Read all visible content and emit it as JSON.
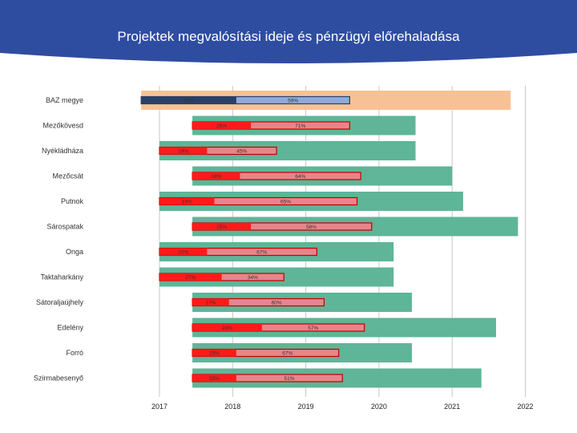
{
  "header": {
    "title": "Projektek megvalósítási ideje és pénzügyi előrehaladása"
  },
  "colors": {
    "banner": "#2f4da0",
    "timeline_highlight": "#f8c195",
    "timeline": "#5fb597",
    "spent_highlight": "#2b3f66",
    "remaining_highlight": "#8eaadb",
    "spent": "#ff1a1a",
    "remaining": "#e8858a"
  },
  "chart_data": {
    "type": "gantt",
    "title": "Projektek megvalósítási ideje és pénzügyi előrehaladása",
    "x_ticks": [
      "2017",
      "2018",
      "2019",
      "2020",
      "2021",
      "2022"
    ],
    "x_range": [
      2017,
      2022
    ],
    "rows": [
      {
        "name": "BAZ megye",
        "start": 2016.75,
        "end": 2021.8,
        "spent_pct": "27%",
        "committed_pct": "59%",
        "bar_start": 2016.75,
        "bar_split": 2018.05,
        "bar_end": 2019.6,
        "highlight": true
      },
      {
        "name": "Mezőkövesd",
        "start": 2017.45,
        "end": 2020.5,
        "spent_pct": "26%",
        "committed_pct": "71%",
        "bar_start": 2017.45,
        "bar_split": 2018.25,
        "bar_end": 2019.6
      },
      {
        "name": "Nyékládháza",
        "start": 2017.0,
        "end": 2020.5,
        "spent_pct": "19%",
        "committed_pct": "45%",
        "bar_start": 2017.0,
        "bar_split": 2017.65,
        "bar_end": 2018.6
      },
      {
        "name": "Mezőcsát",
        "start": 2017.45,
        "end": 2021.0,
        "spent_pct": "18%",
        "committed_pct": "64%",
        "bar_start": 2017.45,
        "bar_split": 2018.1,
        "bar_end": 2019.75
      },
      {
        "name": "Putnok",
        "start": 2017.0,
        "end": 2021.15,
        "spent_pct": "18%",
        "committed_pct": "65%",
        "bar_start": 2017.0,
        "bar_split": 2017.75,
        "bar_end": 2019.7
      },
      {
        "name": "Sárospatak",
        "start": 2017.45,
        "end": 2021.9,
        "spent_pct": "25%",
        "committed_pct": "58%",
        "bar_start": 2017.45,
        "bar_split": 2018.25,
        "bar_end": 2019.9
      },
      {
        "name": "Onga",
        "start": 2017.0,
        "end": 2020.2,
        "spent_pct": "20%",
        "committed_pct": "67%",
        "bar_start": 2017.0,
        "bar_split": 2017.65,
        "bar_end": 2019.15
      },
      {
        "name": "Taktaharkány",
        "start": 2017.0,
        "end": 2020.2,
        "spent_pct": "27%",
        "committed_pct": "34%",
        "bar_start": 2017.0,
        "bar_split": 2017.85,
        "bar_end": 2018.7
      },
      {
        "name": "Sátoraljaújhely",
        "start": 2017.45,
        "end": 2020.45,
        "spent_pct": "17%",
        "committed_pct": "60%",
        "bar_start": 2017.45,
        "bar_split": 2017.95,
        "bar_end": 2019.25
      },
      {
        "name": "Edelény",
        "start": 2017.45,
        "end": 2021.6,
        "spent_pct": "24%",
        "committed_pct": "57%",
        "bar_start": 2017.45,
        "bar_split": 2018.4,
        "bar_end": 2019.8
      },
      {
        "name": "Forró",
        "start": 2017.45,
        "end": 2020.45,
        "spent_pct": "20%",
        "committed_pct": "67%",
        "bar_start": 2017.45,
        "bar_split": 2018.05,
        "bar_end": 2019.45
      },
      {
        "name": "Szirmabesenyő",
        "start": 2017.45,
        "end": 2021.4,
        "spent_pct": "15%",
        "committed_pct": "51%",
        "bar_start": 2017.45,
        "bar_split": 2018.05,
        "bar_end": 2019.5
      }
    ]
  }
}
